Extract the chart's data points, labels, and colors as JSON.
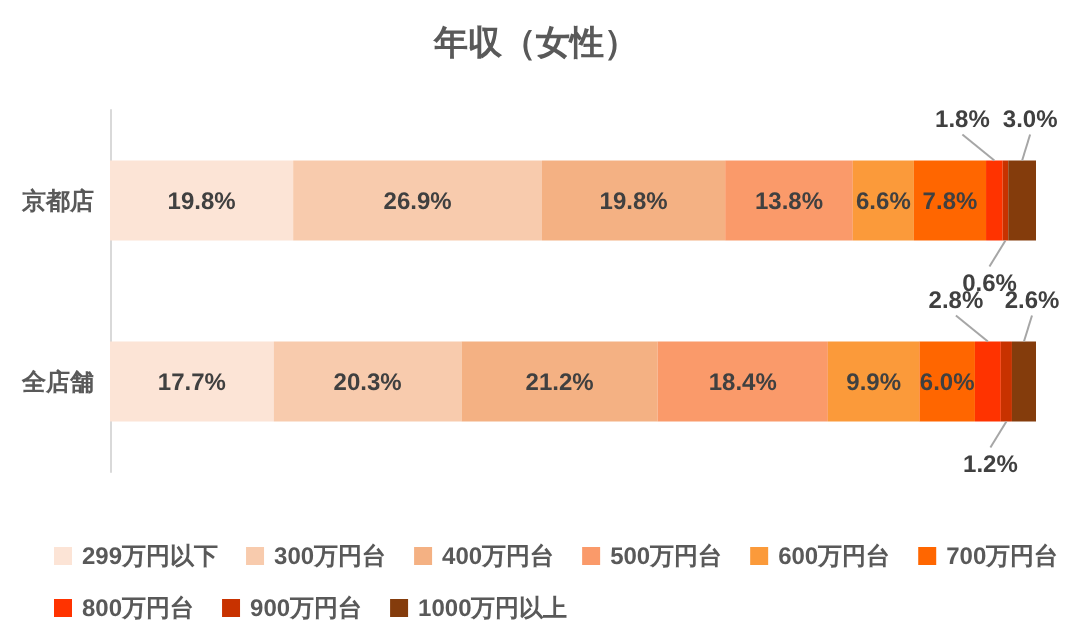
{
  "chart_data": {
    "type": "bar",
    "orientation": "horizontal",
    "stacked": true,
    "tick_labels": "y",
    "title": "年収（女性）",
    "categories": [
      "京都店",
      "全店舗"
    ],
    "legend": "bottom",
    "series": [
      {
        "name": "299万円以下",
        "color": "#fce4d6",
        "values": [
          19.8,
          17.7
        ],
        "value_labels": [
          "19.8%",
          "17.7%"
        ]
      },
      {
        "name": "300万円台",
        "color": "#f8cbad",
        "values": [
          26.9,
          20.3
        ],
        "value_labels": [
          "26.9%",
          "20.3%"
        ]
      },
      {
        "name": "400万円台",
        "color": "#f4b183",
        "values": [
          19.8,
          21.2
        ],
        "value_labels": [
          "19.8%",
          "21.2%"
        ]
      },
      {
        "name": "500万円台",
        "color": "#fa9a6a",
        "values": [
          13.8,
          18.4
        ],
        "value_labels": [
          "13.8%",
          "18.4%"
        ]
      },
      {
        "name": "600万円台",
        "color": "#fb9a3a",
        "values": [
          6.6,
          9.9
        ],
        "value_labels": [
          "6.6%",
          "9.9%"
        ]
      },
      {
        "name": "700万円台",
        "color": "#ff6600",
        "values": [
          7.8,
          6.0
        ],
        "value_labels": [
          "7.8%",
          "6.0%"
        ]
      },
      {
        "name": "800万円台",
        "color": "#ff3300",
        "values": [
          1.8,
          2.8
        ],
        "value_labels": [
          "1.8%",
          "2.8%"
        ]
      },
      {
        "name": "900万円台",
        "color": "#c83200",
        "values": [
          0.6,
          1.2
        ],
        "value_labels": [
          "0.6%",
          "1.2%"
        ]
      },
      {
        "name": "1000万円以上",
        "color": "#843c0c",
        "values": [
          3.0,
          2.6
        ],
        "value_labels": [
          "3.0%",
          "2.6%"
        ]
      }
    ]
  }
}
